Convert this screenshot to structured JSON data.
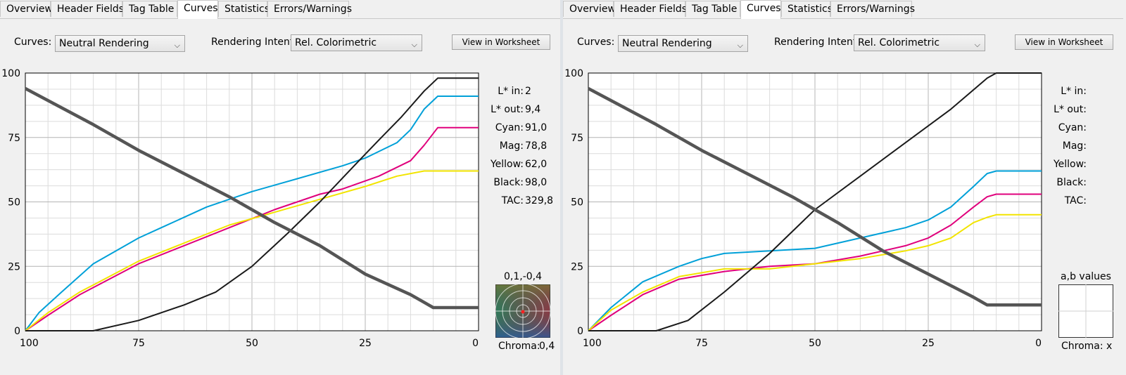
{
  "tabs": [
    "Overview",
    "Header Fields",
    "Tag Table",
    "Curves",
    "Statistics",
    "Errors/Warnings"
  ],
  "active_tab": "Curves",
  "panels": [
    {
      "curves_label": "Curves:",
      "curves_value": "Neutral Rendering",
      "intent_label": "Rendering Intent:",
      "intent_value": "Rel. Colorimetric",
      "view_button": "View in Worksheet",
      "readout": {
        "labels": [
          "L* in:",
          "L* out:",
          "Cyan:",
          "Mag:",
          "Yellow:",
          "Black:",
          "TAC:"
        ],
        "values": [
          "2",
          "9,4",
          "91,0",
          "78,8",
          "62,0",
          "98,0",
          "329,8"
        ]
      },
      "ab_title": "0,1,-0,4",
      "chroma_label": "Chroma:",
      "chroma_value": "0,4",
      "chart_data": {
        "type": "line",
        "xlim": [
          100,
          0
        ],
        "ylim": [
          0,
          100
        ],
        "x_ticks": [
          "100",
          "75",
          "50",
          "25",
          "0"
        ],
        "y_ticks": [
          "100",
          "75",
          "50",
          "25",
          "0"
        ],
        "grid": true,
        "series": [
          {
            "color": "#00a0d8",
            "points": [
              [
                100,
                0
              ],
              [
                97,
                7
              ],
              [
                92,
                15
              ],
              [
                85,
                26
              ],
              [
                75,
                36
              ],
              [
                70,
                40
              ],
              [
                60,
                48
              ],
              [
                50,
                54
              ],
              [
                40,
                59
              ],
              [
                30,
                64
              ],
              [
                25,
                67
              ],
              [
                18,
                73
              ],
              [
                15,
                78
              ],
              [
                12,
                86
              ],
              [
                9,
                91
              ],
              [
                0,
                91
              ]
            ]
          },
          {
            "color": "#e0007c",
            "points": [
              [
                100,
                0
              ],
              [
                95,
                6
              ],
              [
                88,
                14
              ],
              [
                75,
                26
              ],
              [
                65,
                33
              ],
              [
                55,
                40
              ],
              [
                45,
                47
              ],
              [
                35,
                53
              ],
              [
                30,
                55
              ],
              [
                22,
                60
              ],
              [
                15,
                66
              ],
              [
                12,
                72
              ],
              [
                9,
                78.8
              ],
              [
                0,
                78.8
              ]
            ]
          },
          {
            "color": "#f2e400",
            "points": [
              [
                100,
                0
              ],
              [
                95,
                7
              ],
              [
                88,
                15
              ],
              [
                75,
                27
              ],
              [
                65,
                34
              ],
              [
                55,
                41
              ],
              [
                45,
                46
              ],
              [
                35,
                51
              ],
              [
                25,
                56
              ],
              [
                18,
                60
              ],
              [
                12,
                62
              ],
              [
                0,
                62
              ]
            ]
          },
          {
            "color": "#1a1a1a",
            "points": [
              [
                100,
                0
              ],
              [
                85,
                0
              ],
              [
                75,
                4
              ],
              [
                65,
                10
              ],
              [
                58,
                15
              ],
              [
                50,
                25
              ],
              [
                42,
                38
              ],
              [
                35,
                50
              ],
              [
                28,
                63
              ],
              [
                22,
                74
              ],
              [
                17,
                83
              ],
              [
                12,
                93
              ],
              [
                9,
                98
              ],
              [
                0,
                98
              ]
            ]
          },
          {
            "color": "#555555",
            "width": 4.5,
            "points": [
              [
                100,
                94
              ],
              [
                85,
                80
              ],
              [
                75,
                70
              ],
              [
                65,
                61
              ],
              [
                55,
                52
              ],
              [
                45,
                42
              ],
              [
                35,
                33
              ],
              [
                25,
                22
              ],
              [
                15,
                14
              ],
              [
                12,
                11
              ],
              [
                10,
                9
              ],
              [
                0,
                9
              ]
            ]
          }
        ]
      }
    },
    {
      "curves_label": "Curves:",
      "curves_value": "Neutral Rendering",
      "intent_label": "Rendering Intent:",
      "intent_value": "Rel. Colorimetric",
      "view_button": "View in Worksheet",
      "readout": {
        "labels": [
          "L* in:",
          "L* out:",
          "Cyan:",
          "Mag:",
          "Yellow:",
          "Black:",
          "TAC:"
        ],
        "values": [
          "",
          "",
          "",
          "",
          "",
          "",
          ""
        ]
      },
      "ab_title": "a,b values",
      "chroma_label": "Chroma:",
      "chroma_value": "x",
      "chart_data": {
        "type": "line",
        "xlim": [
          100,
          0
        ],
        "ylim": [
          0,
          100
        ],
        "x_ticks": [
          "100",
          "75",
          "50",
          "25",
          "0"
        ],
        "y_ticks": [
          "100",
          "75",
          "50",
          "25",
          "0"
        ],
        "grid": true,
        "series": [
          {
            "color": "#00a0d8",
            "points": [
              [
                100,
                0
              ],
              [
                95,
                9
              ],
              [
                88,
                19
              ],
              [
                80,
                25
              ],
              [
                75,
                28
              ],
              [
                70,
                30
              ],
              [
                60,
                31
              ],
              [
                50,
                32
              ],
              [
                40,
                36
              ],
              [
                30,
                40
              ],
              [
                25,
                43
              ],
              [
                20,
                48
              ],
              [
                15,
                56
              ],
              [
                12,
                61
              ],
              [
                10,
                62
              ],
              [
                0,
                62
              ]
            ]
          },
          {
            "color": "#e0007c",
            "points": [
              [
                100,
                0
              ],
              [
                95,
                6
              ],
              [
                88,
                14
              ],
              [
                80,
                20
              ],
              [
                70,
                23
              ],
              [
                60,
                25
              ],
              [
                50,
                26
              ],
              [
                40,
                29
              ],
              [
                30,
                33
              ],
              [
                25,
                36
              ],
              [
                20,
                41
              ],
              [
                15,
                48
              ],
              [
                12,
                52
              ],
              [
                10,
                53
              ],
              [
                0,
                53
              ]
            ]
          },
          {
            "color": "#f2e400",
            "points": [
              [
                100,
                0
              ],
              [
                95,
                8
              ],
              [
                88,
                15
              ],
              [
                80,
                21
              ],
              [
                70,
                24
              ],
              [
                60,
                24
              ],
              [
                50,
                26
              ],
              [
                40,
                28
              ],
              [
                30,
                31
              ],
              [
                25,
                33
              ],
              [
                20,
                36
              ],
              [
                15,
                42
              ],
              [
                12,
                44
              ],
              [
                10,
                45
              ],
              [
                0,
                45
              ]
            ]
          },
          {
            "color": "#1a1a1a",
            "points": [
              [
                100,
                0
              ],
              [
                85,
                0
              ],
              [
                78,
                4
              ],
              [
                70,
                15
              ],
              [
                60,
                30
              ],
              [
                50,
                47
              ],
              [
                40,
                60
              ],
              [
                30,
                73
              ],
              [
                20,
                86
              ],
              [
                12,
                98
              ],
              [
                10,
                100
              ],
              [
                0,
                100
              ]
            ]
          },
          {
            "color": "#555555",
            "width": 4.5,
            "points": [
              [
                100,
                94
              ],
              [
                85,
                80
              ],
              [
                75,
                70
              ],
              [
                65,
                61
              ],
              [
                55,
                52
              ],
              [
                45,
                42
              ],
              [
                35,
                31
              ],
              [
                25,
                22
              ],
              [
                15,
                13
              ],
              [
                12,
                10
              ],
              [
                10,
                10
              ],
              [
                0,
                10
              ]
            ]
          }
        ]
      }
    }
  ]
}
